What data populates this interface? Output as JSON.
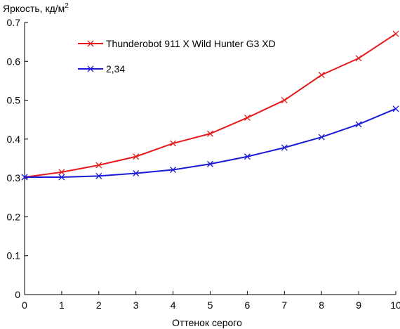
{
  "chart_data": {
    "type": "line",
    "ylabel": "Яркость, кд/м",
    "ylabel_superscript": "2",
    "xlabel": "Оттенок серого",
    "x": [
      0,
      1,
      2,
      3,
      4,
      5,
      6,
      7,
      8,
      9,
      10
    ],
    "xlim": [
      0,
      10
    ],
    "ylim": [
      0,
      0.7
    ],
    "x_ticks": [
      "0",
      "1",
      "2",
      "3",
      "4",
      "5",
      "6",
      "7",
      "8",
      "9",
      "10"
    ],
    "y_ticks": [
      "0",
      "0.1",
      "0.2",
      "0.3",
      "0.4",
      "0.5",
      "0.6",
      "0.7"
    ],
    "grid": false,
    "legend_position": "top-center",
    "series": [
      {
        "name": "Thunderobot 911 X Wild Hunter G3 XD",
        "color": "#e41a1c",
        "values": [
          0.302,
          0.315,
          0.333,
          0.355,
          0.389,
          0.414,
          0.455,
          0.5,
          0.565,
          0.608,
          0.671
        ]
      },
      {
        "name": "2,34",
        "color": "#1a1ad6",
        "values": [
          0.302,
          0.302,
          0.305,
          0.312,
          0.321,
          0.336,
          0.355,
          0.378,
          0.405,
          0.438,
          0.478
        ]
      }
    ]
  }
}
